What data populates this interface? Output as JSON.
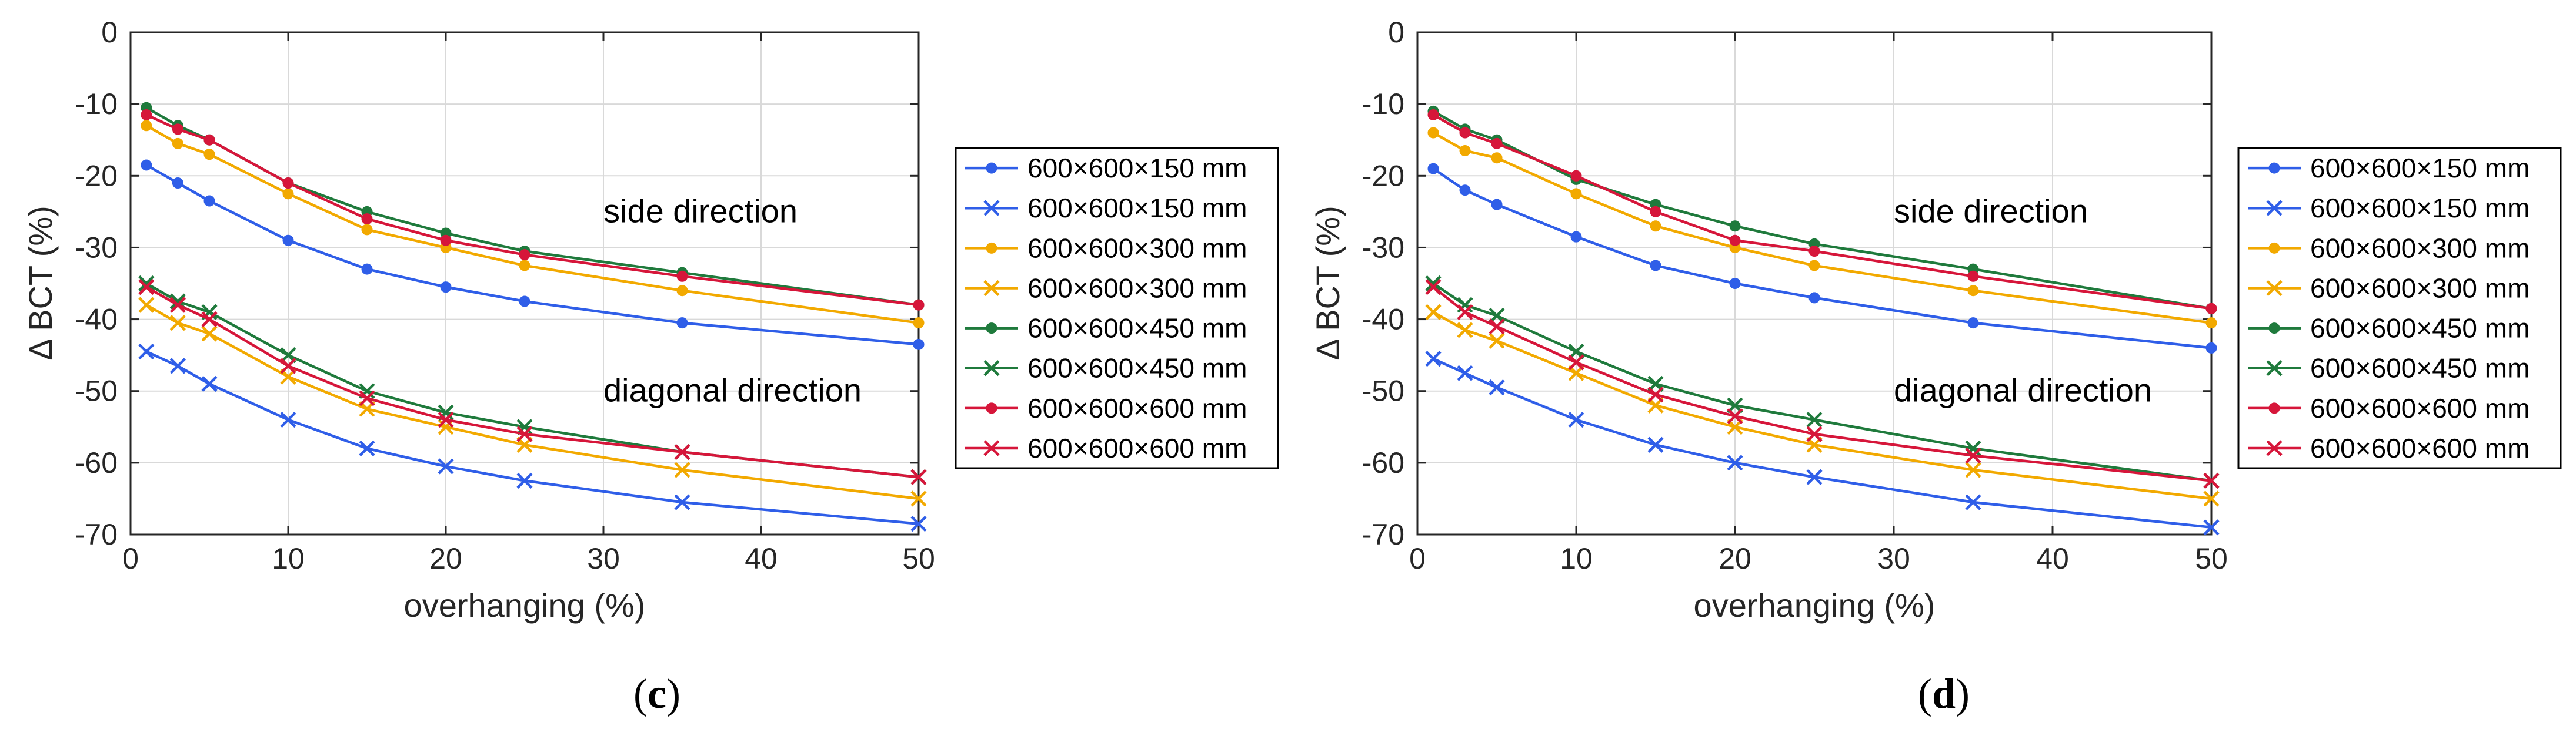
{
  "figure": {
    "colors": {
      "150": "#2f5ee8",
      "300": "#f2a900",
      "450": "#1f7a3c",
      "600": "#d6163a",
      "axis": "#262626",
      "grid": "#d9d9d9"
    }
  },
  "chart_data": [
    {
      "type": "line",
      "panel_label": "c",
      "panel_label_parts": {
        "open": "(",
        "letter": "c",
        "close": ")"
      },
      "xlabel": "overhanging (%)",
      "ylabel": "Δ BCT (%)",
      "xlim": [
        0,
        50
      ],
      "ylim": [
        -70,
        0
      ],
      "xticks": [
        "0",
        "10",
        "20",
        "30",
        "40",
        "50"
      ],
      "yticks": [
        "0",
        "-10",
        "-20",
        "-30",
        "-40",
        "-50",
        "-60",
        "-70"
      ],
      "grid": true,
      "annotations": [
        {
          "text": "side direction",
          "x": 30.0,
          "y": -25
        },
        {
          "text": "diagonal direction",
          "x": 30.0,
          "y": -50
        }
      ],
      "x": [
        1,
        3,
        5,
        10,
        15,
        20,
        25,
        35,
        50
      ],
      "legend_position": "right-outside",
      "series": [
        {
          "name": "600×600×150 mm",
          "marker": "dot",
          "color_key": "150",
          "values": [
            -18.5,
            -21.0,
            -23.5,
            -29.0,
            -33.0,
            -35.5,
            -37.5,
            -40.5,
            -43.5
          ]
        },
        {
          "name": "600×600×150 mm",
          "marker": "x",
          "color_key": "150",
          "values": [
            -44.5,
            -46.5,
            -49.0,
            -54.0,
            -58.0,
            -60.5,
            -62.5,
            -65.5,
            -68.5
          ]
        },
        {
          "name": "600×600×300 mm",
          "marker": "dot",
          "color_key": "300",
          "values": [
            -13.0,
            -15.5,
            -17.0,
            -22.5,
            -27.5,
            -30.0,
            -32.5,
            -36.0,
            -40.5
          ]
        },
        {
          "name": "600×600×300 mm",
          "marker": "x",
          "color_key": "300",
          "values": [
            -38.0,
            -40.5,
            -42.0,
            -48.0,
            -52.5,
            -55.0,
            -57.5,
            -61.0,
            -65.0
          ]
        },
        {
          "name": "600×600×450 mm",
          "marker": "dot",
          "color_key": "450",
          "values": [
            -10.5,
            -13.0,
            -15.0,
            -21.0,
            -25.0,
            -28.0,
            -30.5,
            -33.5,
            -38.0
          ]
        },
        {
          "name": "600×600×450 mm",
          "marker": "x",
          "color_key": "450",
          "values": [
            -35.0,
            -37.5,
            -39.0,
            -45.0,
            -50.0,
            -53.0,
            -55.0,
            -58.5,
            -62.0
          ]
        },
        {
          "name": "600×600×600 mm",
          "marker": "dot",
          "color_key": "600",
          "values": [
            -11.5,
            -13.5,
            -15.0,
            -21.0,
            -26.0,
            -29.0,
            -31.0,
            -34.0,
            -38.0
          ]
        },
        {
          "name": "600×600×600 mm",
          "marker": "x",
          "color_key": "600",
          "values": [
            -35.5,
            -38.0,
            -40.0,
            -46.5,
            -51.0,
            -54.0,
            -56.0,
            -58.5,
            -62.0
          ]
        }
      ]
    },
    {
      "type": "line",
      "panel_label": "d",
      "panel_label_parts": {
        "open": "(",
        "letter": "d",
        "close": ")"
      },
      "xlabel": "overhanging (%)",
      "ylabel": "Δ BCT (%)",
      "xlim": [
        0,
        50
      ],
      "ylim": [
        -70,
        0
      ],
      "xticks": [
        "0",
        "10",
        "20",
        "30",
        "40",
        "50"
      ],
      "yticks": [
        "0",
        "-10",
        "-20",
        "-30",
        "-40",
        "-50",
        "-60",
        "-70"
      ],
      "grid": true,
      "annotations": [
        {
          "text": "side direction",
          "x": 30.0,
          "y": -25
        },
        {
          "text": "diagonal direction",
          "x": 30.0,
          "y": -50
        }
      ],
      "x": [
        1,
        3,
        5,
        10,
        15,
        20,
        25,
        35,
        50
      ],
      "legend_position": "right-outside",
      "series": [
        {
          "name": "600×600×150 mm",
          "marker": "dot",
          "color_key": "150",
          "values": [
            -19.0,
            -22.0,
            -24.0,
            -28.5,
            -32.5,
            -35.0,
            -37.0,
            -40.5,
            -44.0
          ]
        },
        {
          "name": "600×600×150 mm",
          "marker": "x",
          "color_key": "150",
          "values": [
            -45.5,
            -47.5,
            -49.5,
            -54.0,
            -57.5,
            -60.0,
            -62.0,
            -65.5,
            -69.0
          ]
        },
        {
          "name": "600×600×300 mm",
          "marker": "dot",
          "color_key": "300",
          "values": [
            -14.0,
            -16.5,
            -17.5,
            -22.5,
            -27.0,
            -30.0,
            -32.5,
            -36.0,
            -40.5
          ]
        },
        {
          "name": "600×600×300 mm",
          "marker": "x",
          "color_key": "300",
          "values": [
            -39.0,
            -41.5,
            -43.0,
            -47.5,
            -52.0,
            -55.0,
            -57.5,
            -61.0,
            -65.0
          ]
        },
        {
          "name": "600×600×450 mm",
          "marker": "dot",
          "color_key": "450",
          "values": [
            -11.0,
            -13.5,
            -15.0,
            -20.5,
            -24.0,
            -27.0,
            -29.5,
            -33.0,
            -38.5
          ]
        },
        {
          "name": "600×600×450 mm",
          "marker": "x",
          "color_key": "450",
          "values": [
            -35.0,
            -38.0,
            -39.5,
            -44.5,
            -49.0,
            -52.0,
            -54.0,
            -58.0,
            -62.5
          ]
        },
        {
          "name": "600×600×600 mm",
          "marker": "dot",
          "color_key": "600",
          "values": [
            -11.5,
            -14.0,
            -15.5,
            -20.0,
            -25.0,
            -29.0,
            -30.5,
            -34.0,
            -38.5
          ]
        },
        {
          "name": "600×600×600 mm",
          "marker": "x",
          "color_key": "600",
          "values": [
            -35.5,
            -39.0,
            -41.0,
            -46.0,
            -50.5,
            -53.5,
            -56.0,
            -59.0,
            -62.5
          ]
        }
      ]
    }
  ]
}
